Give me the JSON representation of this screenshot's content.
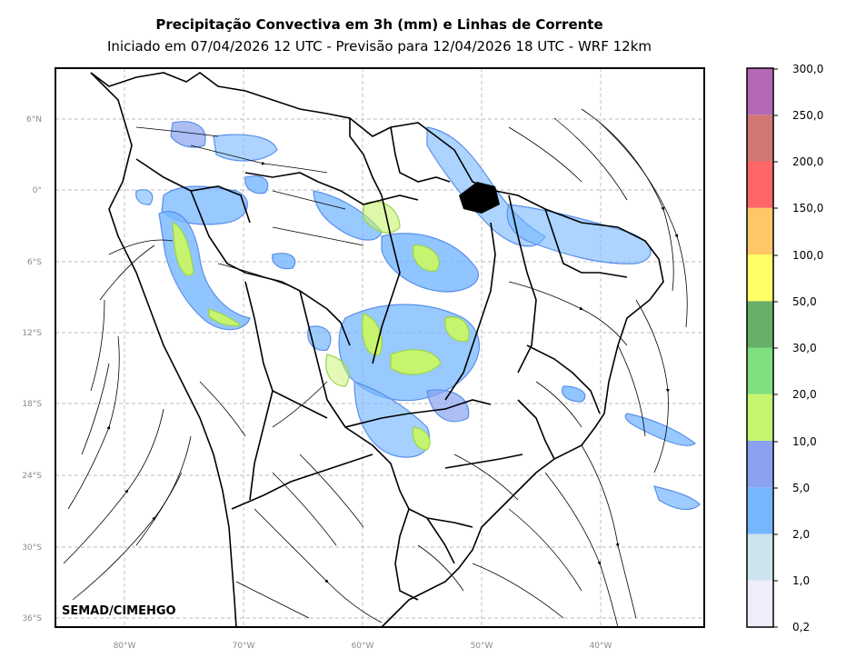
{
  "title": "Precipitação Convectiva em 3h (mm) e Linhas de Corrente",
  "subtitle": "Iniciado em 07/04/2026 12 UTC - Previsão para 12/04/2026 18 UTC - WRF 12km",
  "credit": "SEMAD/CIMEHGO",
  "lat_ticks": [
    "6°N",
    "0°",
    "6°S",
    "12°S",
    "18°S",
    "24°S",
    "30°S",
    "36°S"
  ],
  "lon_ticks": [
    "80°W",
    "70°W",
    "60°W",
    "50°W",
    "40°W"
  ],
  "colorbar": {
    "labels": [
      "0,2",
      "1,0",
      "2,0",
      "5,0",
      "10,0",
      "20,0",
      "30,0",
      "50,0",
      "100,0",
      "150,0",
      "200,0",
      "250,0",
      "300,0"
    ],
    "colors": [
      "#eeeefa",
      "#cde4ee",
      "#75b7ff",
      "#8aa2f0",
      "#c7f46e",
      "#7ee07e",
      "#67ae67",
      "#ffff66",
      "#ffc767",
      "#ff6666",
      "#d07774",
      "#b468b5"
    ]
  }
}
